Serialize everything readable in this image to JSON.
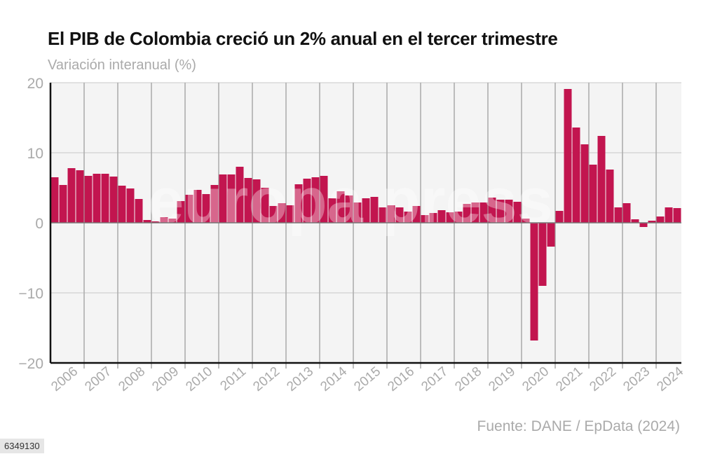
{
  "header": {
    "title": "El PIB de Colombia creció un 2% anual en el tercer trimestre",
    "subtitle": "Variación interanual (%)"
  },
  "footer": {
    "source": "Fuente: DANE / EpData (2024)",
    "image_id_badge": "6349130"
  },
  "watermark": "europa press",
  "colors": {
    "bar": "#c2154f",
    "plot_background": "#f4f4f4",
    "grid": "#c8c8c8",
    "axis_text": "#aaaaaa"
  },
  "chart_data": {
    "type": "bar",
    "title": "El PIB de Colombia creció un 2% anual en el tercer trimestre",
    "ylabel": "Variación interanual (%)",
    "ylim": [
      -20,
      20
    ],
    "yticks": [
      -20,
      -10,
      0,
      10,
      20
    ],
    "ytick_labels": [
      "−20",
      "−10",
      "0",
      "10",
      "20"
    ],
    "grid": true,
    "x_frequency": "quarterly",
    "x_start": "2006 T1",
    "x_end": "2024 T3",
    "year_labels": [
      "2006",
      "2007",
      "2008",
      "2009",
      "2010",
      "2011",
      "2012",
      "2013",
      "2014",
      "2015",
      "2016",
      "2017",
      "2018",
      "2019",
      "2020",
      "2021",
      "2022",
      "2023",
      "2024"
    ],
    "values": [
      6.5,
      5.4,
      7.8,
      7.5,
      6.7,
      7.0,
      7.0,
      6.6,
      5.3,
      4.9,
      3.4,
      0.4,
      0.2,
      0.8,
      0.6,
      3.1,
      4.0,
      4.7,
      4.1,
      5.4,
      6.9,
      6.9,
      8.0,
      6.4,
      6.2,
      5.0,
      2.4,
      2.8,
      2.5,
      5.5,
      6.3,
      6.5,
      6.7,
      3.5,
      4.5,
      3.9,
      2.9,
      3.5,
      3.7,
      2.2,
      2.5,
      2.2,
      1.6,
      2.4,
      1.1,
      1.4,
      1.8,
      1.5,
      1.6,
      2.7,
      2.9,
      2.9,
      3.6,
      3.3,
      3.3,
      3.0,
      0.6,
      -16.8,
      -9.0,
      -3.4,
      1.7,
      19.1,
      13.6,
      11.2,
      8.3,
      12.4,
      7.6,
      2.2,
      2.8,
      0.5,
      -0.6,
      0.3,
      0.9,
      2.2,
      2.1
    ]
  }
}
